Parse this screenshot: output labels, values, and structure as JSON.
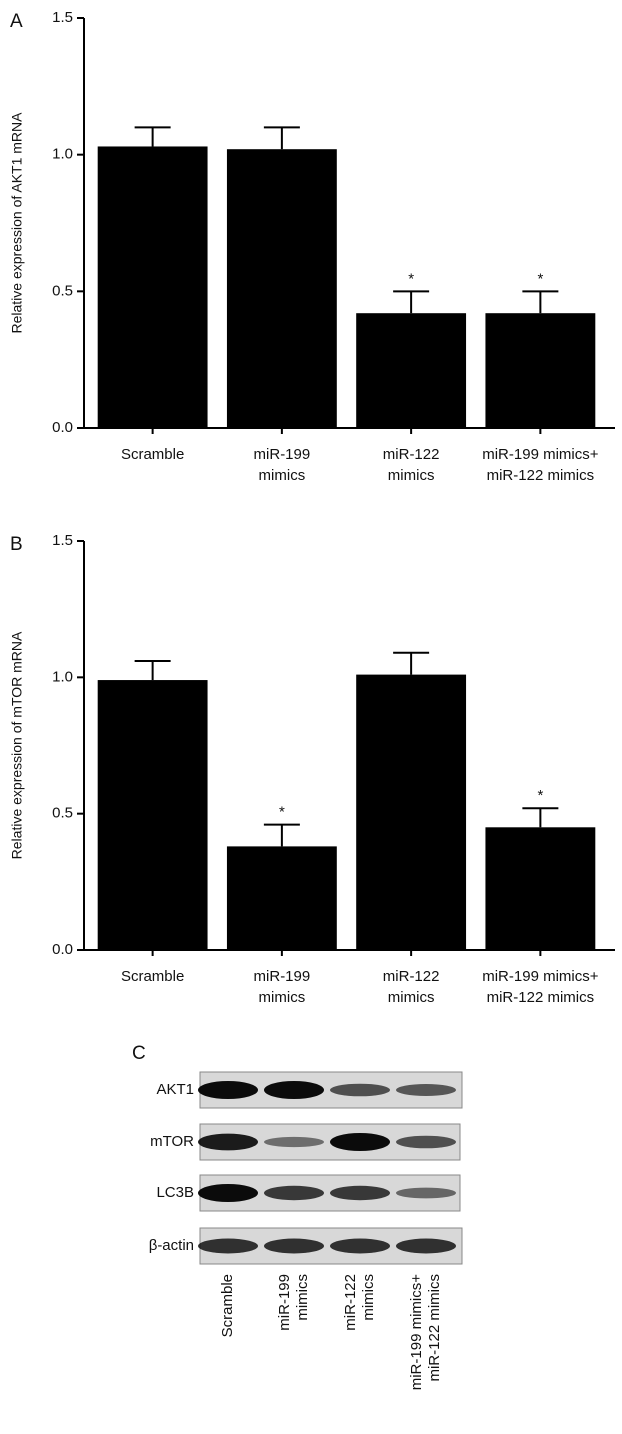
{
  "chart_data": [
    {
      "type": "bar",
      "panel_label": "A",
      "y_label": "Relative expression of AKT1 mRNA",
      "categories": [
        [
          "Scramble"
        ],
        [
          "miR-199",
          "mimics"
        ],
        [
          "miR-122",
          "mimics"
        ],
        [
          "miR-199 mimics+",
          "miR-122 mimics"
        ]
      ],
      "values": [
        1.03,
        1.02,
        0.42,
        0.42
      ],
      "errors": [
        0.07,
        0.08,
        0.08,
        0.08
      ],
      "annotations": [
        null,
        null,
        "*",
        "*"
      ],
      "color": "#000000",
      "ylim": [
        0,
        1.5
      ],
      "yticks": [
        {
          "value": 0,
          "label": "0.0"
        },
        {
          "value": 0.5,
          "label": "0.5"
        },
        {
          "value": 1,
          "label": "1.0"
        },
        {
          "value": 1.5,
          "label": "1.5"
        }
      ]
    },
    {
      "type": "bar",
      "panel_label": "B",
      "y_label": "Relative expression of mTOR mRNA",
      "categories": [
        [
          "Scramble"
        ],
        [
          "miR-199",
          "mimics"
        ],
        [
          "miR-122",
          "mimics"
        ],
        [
          "miR-199 mimics+",
          "miR-122 mimics"
        ]
      ],
      "values": [
        0.99,
        0.38,
        1.01,
        0.45
      ],
      "errors": [
        0.07,
        0.08,
        0.08,
        0.07
      ],
      "annotations": [
        null,
        "*",
        null,
        "*"
      ],
      "color": "#000000",
      "ylim": [
        0,
        1.5
      ],
      "yticks": [
        {
          "value": 0,
          "label": "0.0"
        },
        {
          "value": 0.5,
          "label": "0.5"
        },
        {
          "value": 1,
          "label": "1.0"
        },
        {
          "value": 1.5,
          "label": "1.5"
        }
      ]
    }
  ],
  "blot": {
    "panel_label": "C",
    "rows": [
      "AKT1",
      "mTOR",
      "LC3B",
      "β-actin"
    ],
    "lanes": [
      [
        "Scramble"
      ],
      [
        "miR-199",
        "mimics"
      ],
      [
        "miR-122",
        "mimics"
      ],
      [
        "miR-199 mimics+",
        "miR-122 mimics"
      ]
    ]
  }
}
